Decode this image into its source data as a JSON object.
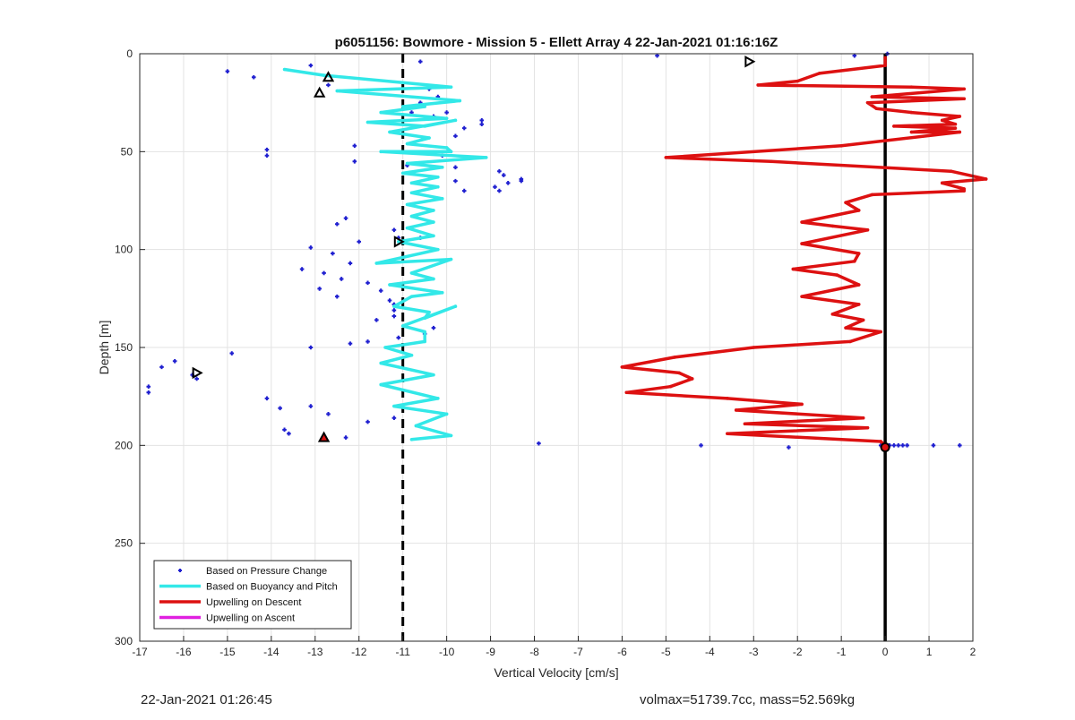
{
  "chart_data": {
    "type": "scatter",
    "title": "p6051156: Bowmore - Mission 5 - Ellett Array 4 22-Jan-2021 01:16:16Z",
    "xlabel": "Vertical Velocity [cm/s]",
    "ylabel": "Depth [m]",
    "xlim": [
      -17,
      2
    ],
    "ylim": [
      0,
      300
    ],
    "y_reversed": true,
    "grid": true,
    "x_ticks": [
      -17,
      -16,
      -15,
      -14,
      -13,
      -12,
      -11,
      -10,
      -9,
      -8,
      -7,
      -6,
      -5,
      -4,
      -3,
      -2,
      -1,
      0,
      1,
      2
    ],
    "y_ticks": [
      0,
      50,
      100,
      150,
      200,
      250,
      300
    ],
    "legend_position": "bottom-left",
    "reference_lines": [
      {
        "type": "dashed-vertical",
        "x": -11,
        "color": "#000000"
      },
      {
        "type": "solid-vertical",
        "x": 0,
        "color": "#000000"
      }
    ],
    "series": [
      {
        "name": "Based on Pressure Change",
        "style": "points",
        "color": "#1f1fd0",
        "points": [
          [
            -13.1,
            6
          ],
          [
            -15,
            9
          ],
          [
            -14.4,
            12
          ],
          [
            -12.7,
            16
          ],
          [
            -10.6,
            4
          ],
          [
            -5.2,
            1
          ],
          [
            -0.7,
            1
          ],
          [
            0.05,
            0
          ],
          [
            -10.4,
            18
          ],
          [
            -10.2,
            22
          ],
          [
            -10.6,
            25
          ],
          [
            -10,
            30
          ],
          [
            -10.3,
            32
          ],
          [
            -9.2,
            34
          ],
          [
            -9.6,
            38
          ],
          [
            -9.8,
            42
          ],
          [
            -9.2,
            36
          ],
          [
            -10.8,
            30
          ],
          [
            -12.1,
            47
          ],
          [
            -14.1,
            49
          ],
          [
            -14.1,
            52
          ],
          [
            -12.1,
            55
          ],
          [
            -10.1,
            52
          ],
          [
            -10.9,
            57
          ],
          [
            -9.8,
            58
          ],
          [
            -8.8,
            60
          ],
          [
            -8.3,
            64
          ],
          [
            -8.3,
            65
          ],
          [
            -8.7,
            62
          ],
          [
            -8.6,
            66
          ],
          [
            -8.9,
            68
          ],
          [
            -8.8,
            70
          ],
          [
            -9.6,
            70
          ],
          [
            -9.8,
            65
          ],
          [
            -12.3,
            84
          ],
          [
            -12.5,
            87
          ],
          [
            -12,
            96
          ],
          [
            -13.1,
            99
          ],
          [
            -11.2,
            90
          ],
          [
            -11.1,
            94
          ],
          [
            -10.6,
            94
          ],
          [
            -12.6,
            102
          ],
          [
            -12.2,
            107
          ],
          [
            -13.3,
            110
          ],
          [
            -12.8,
            112
          ],
          [
            -12.4,
            115
          ],
          [
            -12.5,
            124
          ],
          [
            -11.8,
            117
          ],
          [
            -12.9,
            120
          ],
          [
            -11.5,
            121
          ],
          [
            -11.3,
            126
          ],
          [
            -11.2,
            128
          ],
          [
            -11.2,
            131
          ],
          [
            -11.2,
            134
          ],
          [
            -11.6,
            136
          ],
          [
            -10.3,
            140
          ],
          [
            -10.5,
            143
          ],
          [
            -11.1,
            145
          ],
          [
            -11.8,
            147
          ],
          [
            -12.2,
            148
          ],
          [
            -13.1,
            150
          ],
          [
            -14.9,
            153
          ],
          [
            -16.2,
            157
          ],
          [
            -16.5,
            160
          ],
          [
            -15.8,
            164
          ],
          [
            -15.7,
            166
          ],
          [
            -16.8,
            170
          ],
          [
            -16.8,
            173
          ],
          [
            -14.1,
            176
          ],
          [
            -13.8,
            181
          ],
          [
            -13.1,
            180
          ],
          [
            -12.7,
            184
          ],
          [
            -11.8,
            188
          ],
          [
            -11.2,
            186
          ],
          [
            -13.7,
            192
          ],
          [
            -13.6,
            194
          ],
          [
            -12.3,
            196
          ],
          [
            -7.9,
            199
          ],
          [
            -4.2,
            200
          ],
          [
            -2.2,
            201
          ],
          [
            -0.1,
            200
          ],
          [
            0.05,
            200
          ],
          [
            0.1,
            200
          ],
          [
            0.2,
            200
          ],
          [
            0.3,
            200
          ],
          [
            0.4,
            200
          ],
          [
            0.5,
            200
          ],
          [
            1.1,
            200
          ],
          [
            1.7,
            200
          ]
        ]
      },
      {
        "name": "Based on Buoyancy and Pitch",
        "style": "line",
        "color": "#33e8e8",
        "points": [
          [
            -13.7,
            8
          ],
          [
            -12.8,
            11
          ],
          [
            -9.9,
            17
          ],
          [
            -12.5,
            19
          ],
          [
            -9.7,
            24
          ],
          [
            -11,
            27
          ],
          [
            -10.5,
            27
          ],
          [
            -11.5,
            30
          ],
          [
            -10,
            33
          ],
          [
            -11.8,
            35
          ],
          [
            -10.5,
            37
          ],
          [
            -9.8,
            34
          ],
          [
            -11.3,
            40
          ],
          [
            -10.4,
            43
          ],
          [
            -10.9,
            46
          ],
          [
            -10,
            48
          ],
          [
            -9.9,
            50
          ],
          [
            -11.5,
            50
          ],
          [
            -9.1,
            53
          ],
          [
            -10.9,
            56
          ],
          [
            -10.1,
            58
          ],
          [
            -11,
            61
          ],
          [
            -10.2,
            63
          ],
          [
            -10.8,
            66
          ],
          [
            -10.2,
            68
          ],
          [
            -10.8,
            71
          ],
          [
            -10.1,
            74
          ],
          [
            -10.9,
            77
          ],
          [
            -10.3,
            80
          ],
          [
            -10.8,
            83
          ],
          [
            -10.3,
            86
          ],
          [
            -10.9,
            89
          ],
          [
            -10.3,
            93
          ],
          [
            -11.1,
            96
          ],
          [
            -10.2,
            100
          ],
          [
            -11.6,
            107
          ],
          [
            -9.9,
            105
          ],
          [
            -10.8,
            112
          ],
          [
            -10.3,
            115
          ],
          [
            -11.3,
            118
          ],
          [
            -10.1,
            122
          ],
          [
            -10.8,
            124
          ],
          [
            -11.2,
            129
          ],
          [
            -10.4,
            132
          ],
          [
            -10.5,
            135
          ],
          [
            -9.8,
            129
          ],
          [
            -11,
            139
          ],
          [
            -10.5,
            142
          ],
          [
            -10.5,
            147
          ],
          [
            -11.4,
            150
          ],
          [
            -10.8,
            154
          ],
          [
            -11.5,
            158
          ],
          [
            -10.3,
            164
          ],
          [
            -11.5,
            169
          ],
          [
            -10.2,
            176
          ],
          [
            -11.2,
            180
          ],
          [
            -10,
            184
          ],
          [
            -10.7,
            190
          ],
          [
            -9.9,
            195
          ],
          [
            -10.8,
            197
          ]
        ]
      },
      {
        "name": "Upwelling on Descent",
        "style": "line",
        "color": "#dd1111",
        "points": [
          [
            0,
            2
          ],
          [
            0,
            6
          ],
          [
            -1.5,
            10
          ],
          [
            -2,
            14
          ],
          [
            -2.9,
            16
          ],
          [
            0.6,
            17
          ],
          [
            1.8,
            18
          ],
          [
            -0.3,
            22
          ],
          [
            1.8,
            23
          ],
          [
            -0.4,
            25
          ],
          [
            -0.2,
            28
          ],
          [
            0.6,
            30
          ],
          [
            1.7,
            32
          ],
          [
            1.3,
            34
          ],
          [
            1.6,
            36
          ],
          [
            0.2,
            37
          ],
          [
            1.6,
            38
          ],
          [
            0.6,
            40
          ],
          [
            1.7,
            40
          ],
          [
            -1,
            47
          ],
          [
            -5,
            53
          ],
          [
            -2.6,
            55
          ],
          [
            1.5,
            60
          ],
          [
            2.3,
            64
          ],
          [
            1.3,
            66
          ],
          [
            1.8,
            69
          ],
          [
            1.8,
            70
          ],
          [
            -0.3,
            72
          ],
          [
            -0.9,
            76
          ],
          [
            -0.6,
            80
          ],
          [
            -1.9,
            86
          ],
          [
            -1.2,
            88
          ],
          [
            -0.4,
            90
          ],
          [
            -1.9,
            97
          ],
          [
            -0.6,
            102
          ],
          [
            -0.7,
            106
          ],
          [
            -2.1,
            110
          ],
          [
            -1.1,
            113
          ],
          [
            -0.6,
            118
          ],
          [
            -1.9,
            124
          ],
          [
            -0.6,
            128
          ],
          [
            -1.2,
            133
          ],
          [
            -0.5,
            136
          ],
          [
            -0.9,
            140
          ],
          [
            -0.1,
            142
          ],
          [
            -0.8,
            147
          ],
          [
            -3,
            150
          ],
          [
            -4.8,
            155
          ],
          [
            -6,
            160
          ],
          [
            -4.7,
            163
          ],
          [
            -4.4,
            166
          ],
          [
            -4.9,
            170
          ],
          [
            -5.9,
            173
          ],
          [
            -3.6,
            176
          ],
          [
            -1.9,
            179
          ],
          [
            -3.4,
            182
          ],
          [
            -0.5,
            186
          ],
          [
            -3.2,
            189
          ],
          [
            -0.4,
            191
          ],
          [
            -3.6,
            194
          ],
          [
            -0.1,
            198
          ],
          [
            0,
            200
          ]
        ]
      },
      {
        "name": "Upwelling on Ascent",
        "style": "line",
        "color": "#e020e0",
        "points": []
      }
    ],
    "markers": [
      {
        "shape": "triangle-up",
        "x": -12.7,
        "y": 12,
        "color": "#000000"
      },
      {
        "shape": "triangle-up",
        "x": -12.9,
        "y": 20,
        "color": "#000000"
      },
      {
        "shape": "triangle-right",
        "x": -11.1,
        "y": 96,
        "color": "#000000"
      },
      {
        "shape": "triangle-right",
        "x": -15.7,
        "y": 163,
        "color": "#000000"
      },
      {
        "shape": "triangle-right",
        "x": -3.1,
        "y": 4,
        "color": "#000000"
      },
      {
        "shape": "triangle-up-filled",
        "x": -12.8,
        "y": 196,
        "color": "#dd1111"
      },
      {
        "shape": "circle",
        "x": 0,
        "y": 201,
        "color": "#dd1111"
      }
    ]
  },
  "footer": {
    "timestamp": "22-Jan-2021 01:26:45",
    "info": "volmax=51739.7cc, mass=52.569kg"
  }
}
